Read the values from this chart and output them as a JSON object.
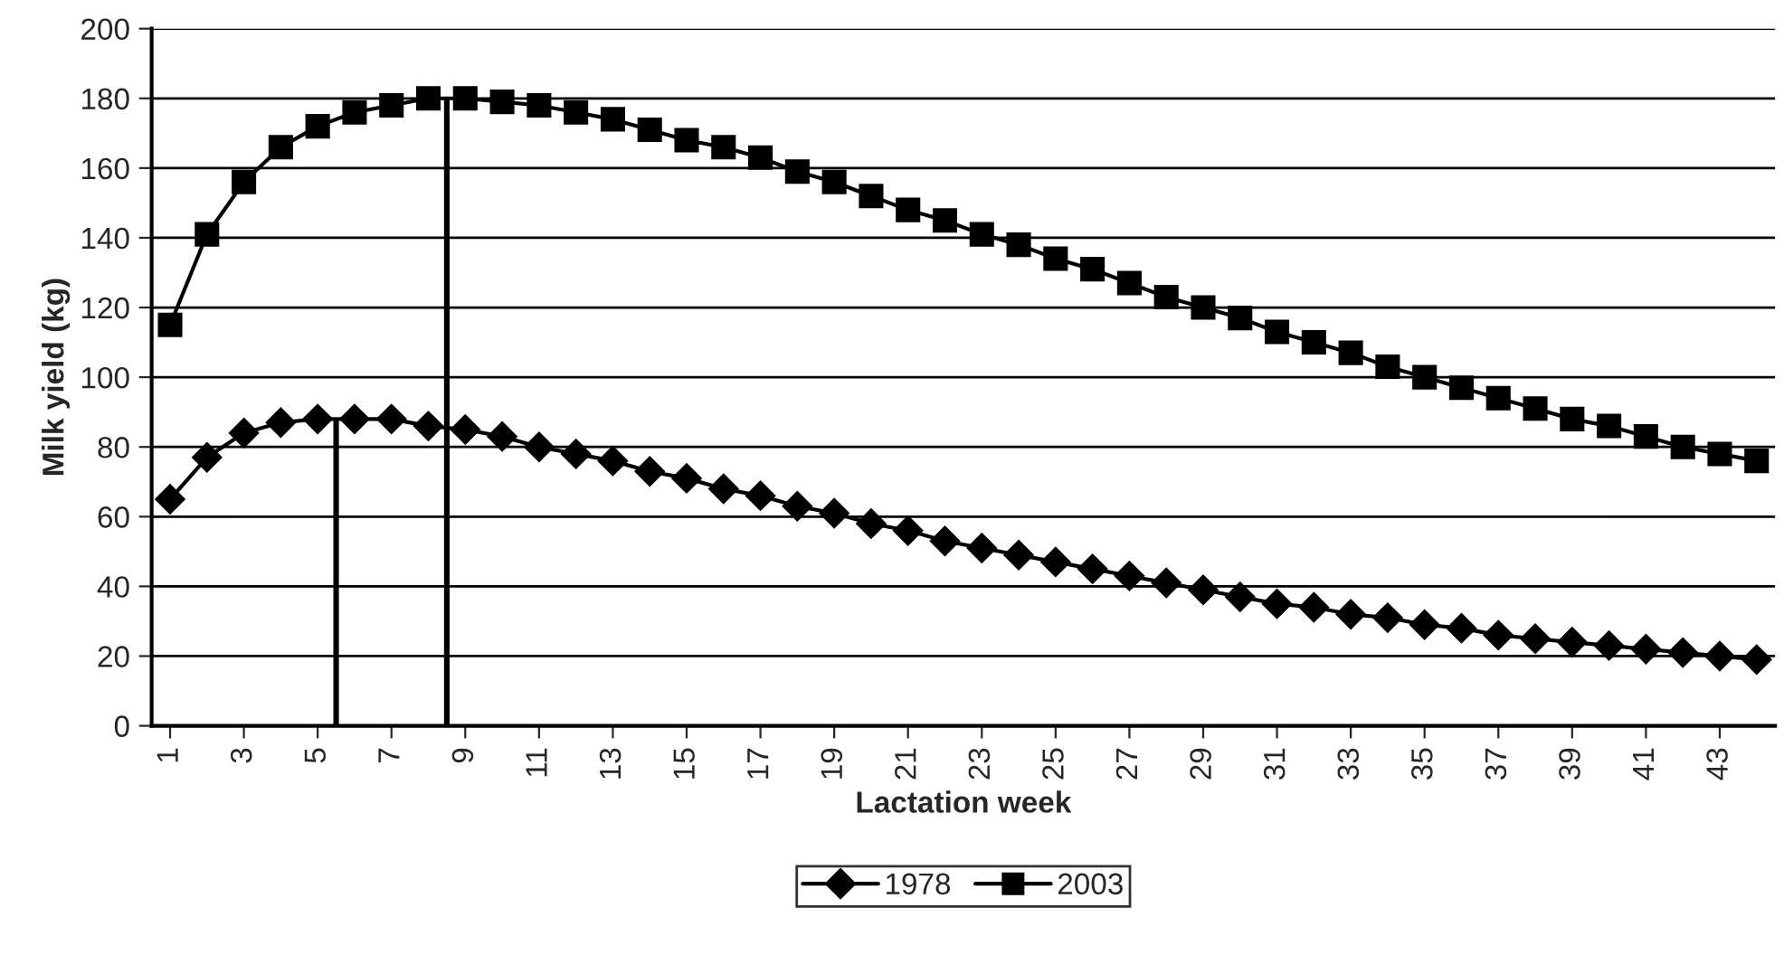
{
  "chart_data": {
    "type": "line",
    "xlabel": "Lactation week",
    "ylabel": "Milk yield (kg)",
    "x": [
      1,
      2,
      3,
      4,
      5,
      6,
      7,
      8,
      9,
      10,
      11,
      12,
      13,
      14,
      15,
      16,
      17,
      18,
      19,
      20,
      21,
      22,
      23,
      24,
      25,
      26,
      27,
      28,
      29,
      30,
      31,
      32,
      33,
      34,
      35,
      36,
      37,
      38,
      39,
      40,
      41,
      42,
      43,
      44
    ],
    "xlim": [
      0.5,
      44.5
    ],
    "xticks": [
      1,
      3,
      5,
      7,
      9,
      11,
      13,
      15,
      17,
      19,
      21,
      23,
      25,
      27,
      29,
      31,
      33,
      35,
      37,
      39,
      41,
      43
    ],
    "ylim": [
      0,
      200
    ],
    "yticks": [
      0,
      20,
      40,
      60,
      80,
      100,
      120,
      140,
      160,
      180,
      200
    ],
    "grid": "y",
    "legend": "bottom",
    "series": [
      {
        "name": "1978",
        "color": "#000000",
        "marker": "diamond",
        "values": [
          65,
          77,
          84,
          87,
          88,
          88,
          88,
          86,
          85,
          83,
          80,
          78,
          76,
          73,
          71,
          68,
          66,
          63,
          61,
          58,
          56,
          53,
          51,
          49,
          47,
          45,
          43,
          41,
          39,
          37,
          35,
          34,
          32,
          31,
          29,
          28,
          26,
          25,
          24,
          23,
          22,
          21,
          20,
          19
        ]
      },
      {
        "name": "2003",
        "color": "#000000",
        "marker": "square",
        "values": [
          115,
          141,
          156,
          166,
          172,
          176,
          178,
          180,
          180,
          179,
          178,
          176,
          174,
          171,
          168,
          166,
          163,
          159,
          156,
          152,
          148,
          145,
          141,
          138,
          134,
          131,
          127,
          123,
          120,
          117,
          113,
          110,
          107,
          103,
          100,
          97,
          94,
          91,
          88,
          86,
          83,
          80,
          78,
          76
        ]
      },
      {
        "type": "bar",
        "color": "#000000",
        "x": [
          5.5,
          8.5
        ],
        "values": [
          88,
          180
        ]
      }
    ]
  }
}
